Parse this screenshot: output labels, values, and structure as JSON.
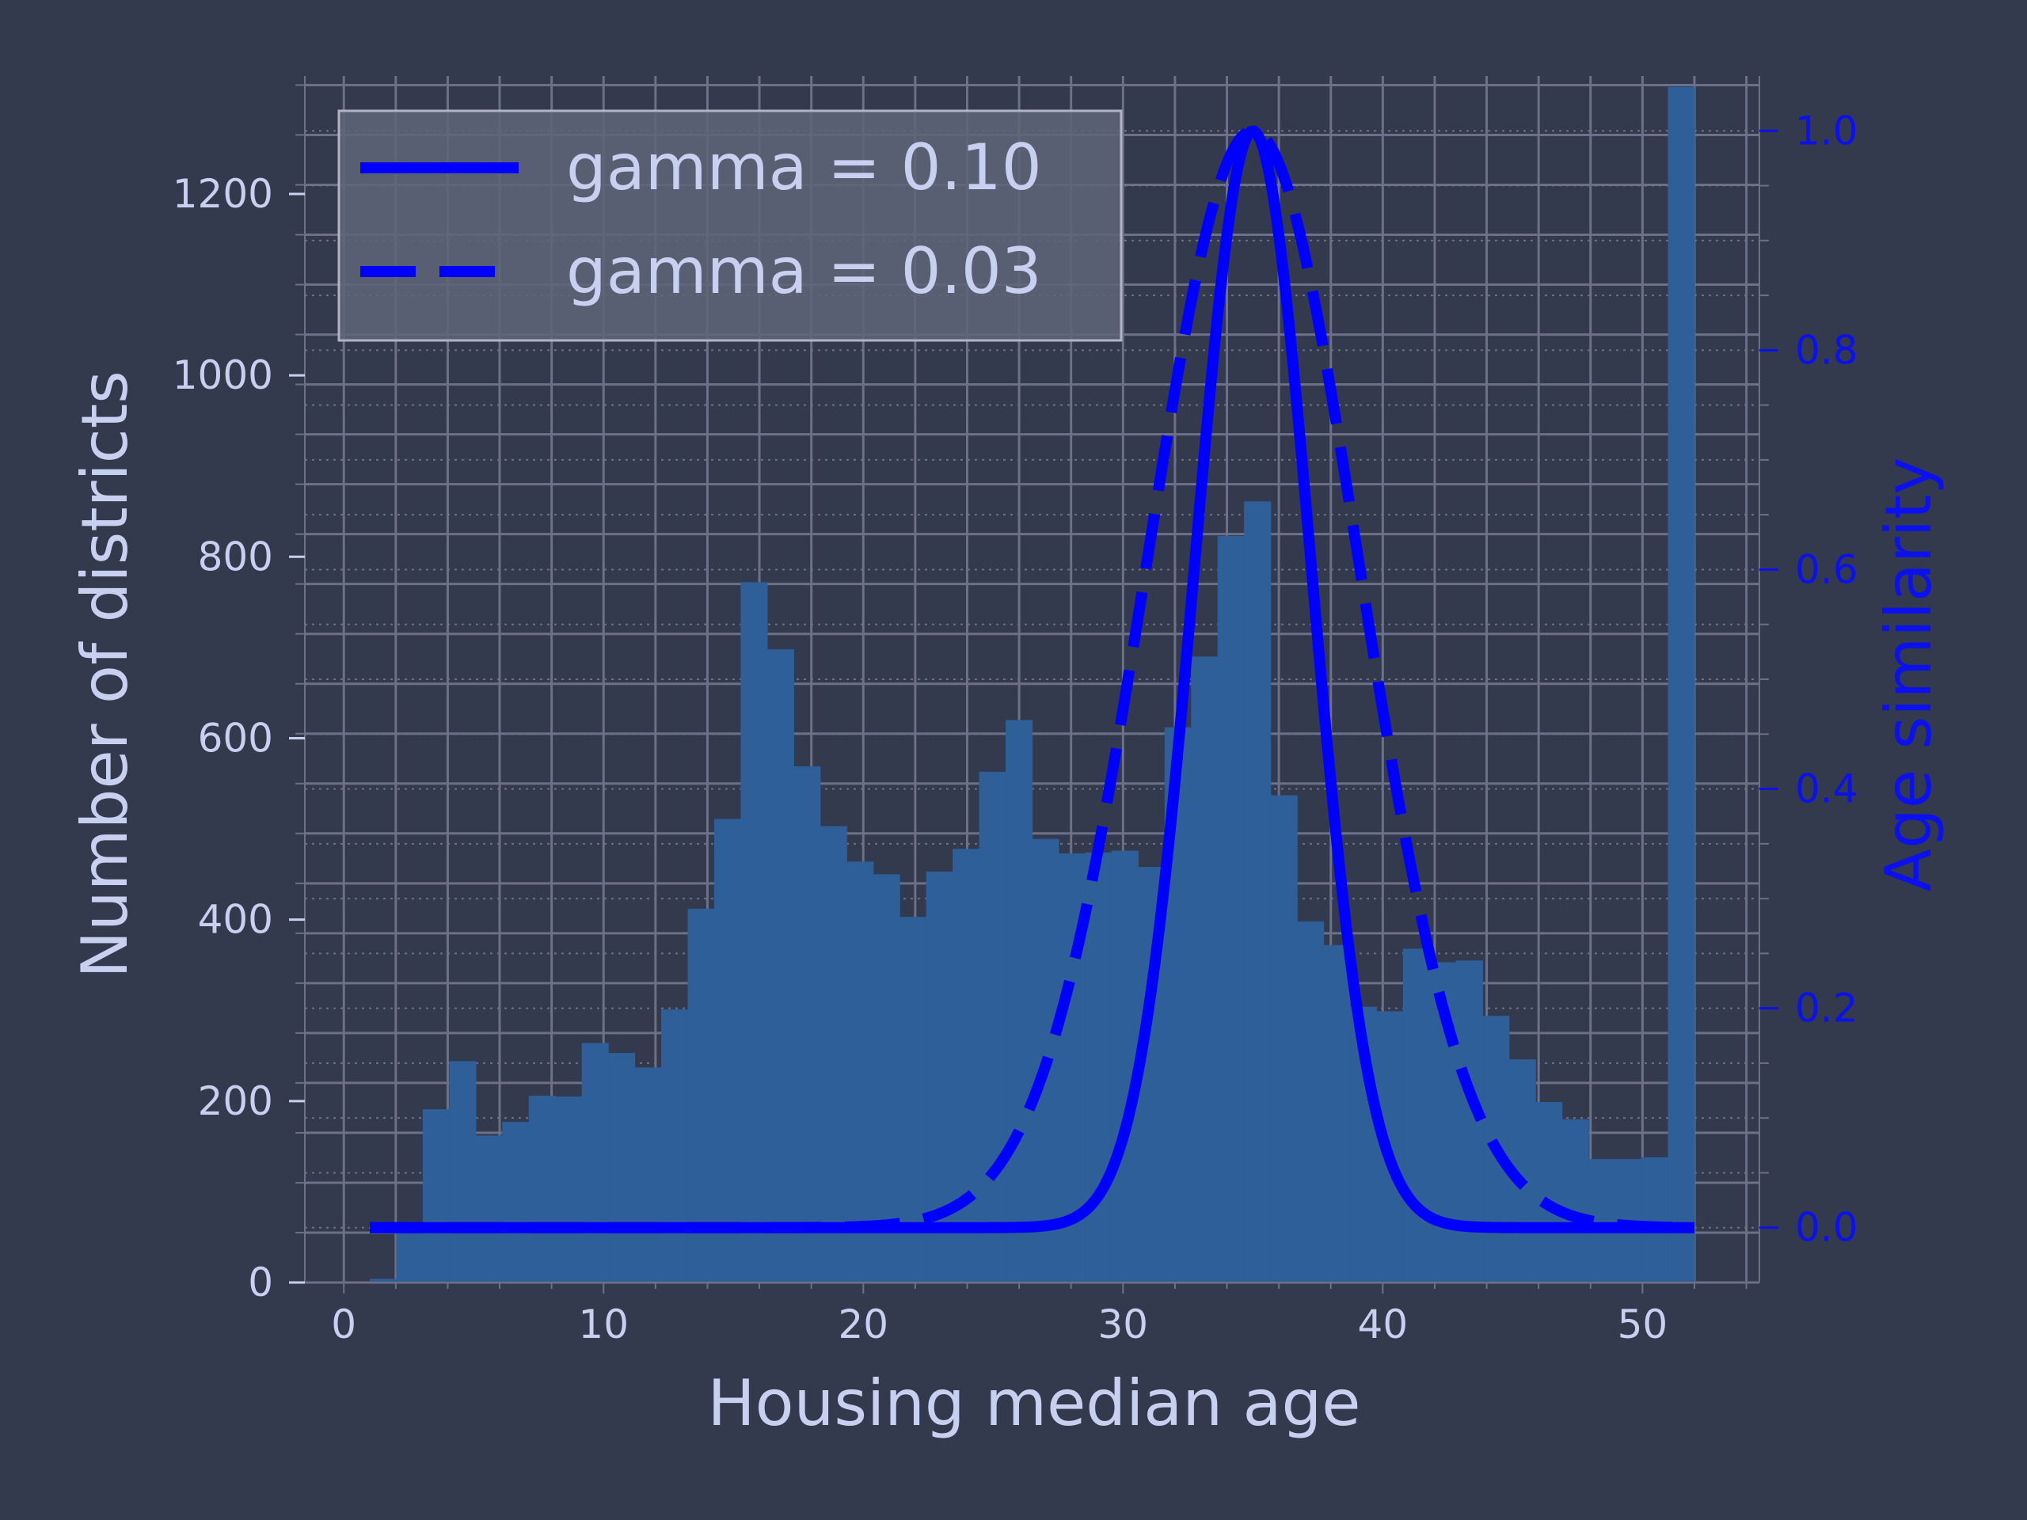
{
  "colors": {
    "background": "#343a4d",
    "grid": "#6c7089",
    "text": "#c8d0f0",
    "bar": "#2f5f98",
    "curve": "#0000ff",
    "right_axis": "#0a10ee",
    "legend_bg": "#5e6477",
    "legend_border": "#b0b4c4"
  },
  "chart_data": {
    "type": "bar",
    "xlabel": "Housing median age",
    "ylabel": "Number of districts",
    "y2label": "Age similarity",
    "xlim": [
      -1.5,
      54.5
    ],
    "ylim": [
      0,
      1330
    ],
    "y2lim": [
      -0.05,
      1.05
    ],
    "xticks": [
      "0",
      "10",
      "20",
      "30",
      "40",
      "50"
    ],
    "yticks": [
      "0",
      "200",
      "400",
      "600",
      "800",
      "1000",
      "1200"
    ],
    "y2ticks": [
      "0.0",
      "0.2",
      "0.4",
      "0.6",
      "0.8",
      "1.0"
    ],
    "grid": true,
    "legend_placement": "upper-left",
    "histogram": {
      "name": "housing median age",
      "bin_edges": [
        1,
        2.02,
        3.04,
        4.06,
        5.08,
        6.1,
        7.12,
        8.14,
        9.16,
        10.18,
        11.2,
        12.22,
        13.24,
        14.26,
        15.28,
        16.3,
        17.32,
        18.34,
        19.36,
        20.38,
        21.4,
        22.42,
        23.44,
        24.46,
        25.48,
        26.5,
        27.52,
        28.54,
        29.56,
        30.58,
        31.6,
        32.62,
        33.64,
        34.66,
        35.68,
        36.7,
        37.72,
        38.74,
        39.76,
        40.78,
        41.8,
        42.82,
        43.84,
        44.86,
        45.88,
        46.9,
        47.92,
        48.94,
        49.96,
        50.98,
        52
      ],
      "counts": [
        4,
        62,
        191,
        244,
        162,
        177,
        206,
        205,
        264,
        253,
        237,
        301,
        412,
        511,
        772,
        698,
        569,
        503,
        464,
        450,
        403,
        453,
        478,
        563,
        620,
        489,
        473,
        474,
        476,
        458,
        612,
        690,
        823,
        861,
        537,
        398,
        372,
        304,
        299,
        368,
        353,
        355,
        294,
        246,
        199,
        180,
        136,
        136,
        138,
        1318
      ]
    },
    "series": [
      {
        "name": "gamma = 0.10",
        "style": "solid",
        "center": 35,
        "gamma": 0.1
      },
      {
        "name": "gamma = 0.03",
        "style": "dashed",
        "center": 35,
        "gamma": 0.03
      }
    ],
    "curve_x_range": [
      1,
      52
    ]
  }
}
